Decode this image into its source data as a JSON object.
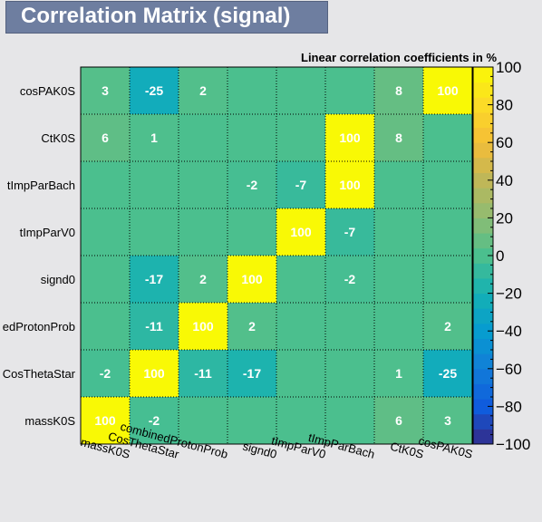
{
  "title": "Correlation Matrix (signal)",
  "chart_data": {
    "type": "heatmap",
    "subtitle": "Linear correlation coefficients in %",
    "variables_x": [
      "massK0S",
      "CosThetaStar",
      "combinedProtonProb",
      "signd0",
      "tImpParV0",
      "tImpParBach",
      "CtK0S",
      "cosPAK0S"
    ],
    "variables_y_top_to_bottom": [
      "cosPAK0S",
      "CtK0S",
      "tImpParBach",
      "tImpParV0",
      "signd0",
      "edProtonProb",
      "CosThetaStar",
      "massK0S"
    ],
    "matrix_top_to_bottom": [
      [
        3,
        -25,
        2,
        null,
        null,
        null,
        8,
        100
      ],
      [
        6,
        1,
        null,
        null,
        null,
        100,
        8,
        null
      ],
      [
        null,
        null,
        null,
        -2,
        -7,
        100,
        null,
        null
      ],
      [
        null,
        null,
        null,
        null,
        100,
        -7,
        null,
        null
      ],
      [
        null,
        -17,
        2,
        100,
        null,
        -2,
        null,
        null
      ],
      [
        null,
        -11,
        100,
        2,
        null,
        null,
        null,
        2
      ],
      [
        -2,
        100,
        -11,
        -17,
        null,
        null,
        1,
        -25
      ],
      [
        100,
        -2,
        null,
        null,
        null,
        null,
        6,
        3
      ]
    ],
    "zlim": [
      -100,
      100
    ],
    "colorbar_ticks": [
      "100",
      "80",
      "60",
      "40",
      "20",
      "0",
      "−20",
      "−40",
      "−60",
      "−80",
      "−100"
    ],
    "grid": true,
    "colors": {
      "zero": "#4bbf8e",
      "high": "#f9f905",
      "low": "#352a87"
    }
  }
}
